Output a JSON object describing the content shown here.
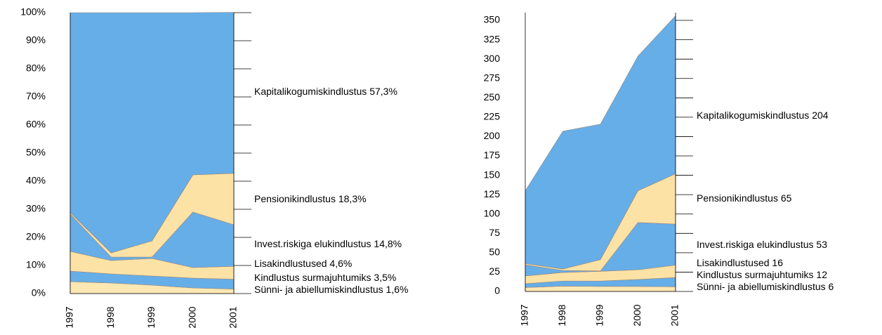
{
  "chart_data": [
    {
      "type": "area",
      "stacked": true,
      "categories": [
        "1997",
        "1998",
        "1999",
        "2000",
        "2001"
      ],
      "ylim": [
        0,
        100
      ],
      "yticks": [
        {
          "value": 0,
          "label": "0%"
        },
        {
          "value": 10,
          "label": "10%"
        },
        {
          "value": 20,
          "label": "20%"
        },
        {
          "value": 30,
          "label": "30%"
        },
        {
          "value": 40,
          "label": "40%"
        },
        {
          "value": 50,
          "label": "50%"
        },
        {
          "value": 60,
          "label": "60%"
        },
        {
          "value": 70,
          "label": "70%"
        },
        {
          "value": 80,
          "label": "80%"
        },
        {
          "value": 90,
          "label": "90%"
        },
        {
          "value": 100,
          "label": "100%"
        }
      ],
      "series": [
        {
          "name": "Sünni- ja abiellumiskindlustus",
          "color": "#fde7b3",
          "values": [
            4.25,
            3.75,
            3,
            2,
            1.6
          ],
          "value_labels": [
            null,
            null,
            null,
            null,
            "1,6%"
          ]
        },
        {
          "name": "Kindlustus surmajuhtumiks",
          "color": "#66aee8",
          "values": [
            3.75,
            3.25,
            3.25,
            3.5,
            3.5
          ],
          "value_labels": [
            null,
            null,
            null,
            null,
            "3,5%"
          ]
        },
        {
          "name": "Lisakindlustused",
          "color": "#fde2a6",
          "values": [
            7,
            4.75,
            6.25,
            3.75,
            4.6
          ],
          "value_labels": [
            null,
            null,
            null,
            null,
            "4,6%"
          ]
        },
        {
          "name": "Invest.riskiga elukindlustus",
          "color": "#66aee8",
          "values": [
            13.25,
            1.25,
            0.5,
            19.75,
            14.8
          ],
          "value_labels": [
            null,
            null,
            null,
            null,
            "14,8%"
          ]
        },
        {
          "name": "Pensionikindlustus",
          "color": "#fde2a6",
          "values": [
            0.5,
            1.5,
            5.75,
            13.25,
            18.3
          ],
          "value_labels": [
            null,
            null,
            null,
            null,
            "18,3%"
          ]
        },
        {
          "name": "Kapitalikogumiskindlustus",
          "color": "#66aee8",
          "values": [
            71.25,
            85.5,
            81.25,
            57.75,
            57.3
          ],
          "value_labels": [
            null,
            null,
            null,
            null,
            "57,3%"
          ]
        }
      ]
    },
    {
      "type": "area",
      "stacked": true,
      "categories": [
        "1997",
        "1998",
        "1999",
        "2000",
        "2001"
      ],
      "ylim": [
        0,
        360
      ],
      "yticks": [
        0,
        25,
        50,
        75,
        100,
        125,
        150,
        175,
        200,
        225,
        250,
        275,
        300,
        325,
        350
      ],
      "series": [
        {
          "name": "Sünni- ja abiellumiskindlustus",
          "color": "#fde7b3",
          "values": [
            5,
            7,
            6.5,
            6.5,
            6
          ]
        },
        {
          "name": "Kindlustus surmajuhtumiks",
          "color": "#66aee8",
          "values": [
            5,
            6.5,
            7,
            9,
            12
          ]
        },
        {
          "name": "Lisakindlustused",
          "color": "#fde2a6",
          "values": [
            10,
            11,
            12.5,
            12.5,
            16
          ]
        },
        {
          "name": "Invest.riskiga elukindlustus",
          "color": "#66aee8",
          "values": [
            14.5,
            2.5,
            0.5,
            61,
            53
          ]
        },
        {
          "name": "Pensionikindlustus",
          "color": "#fde2a6",
          "values": [
            1.5,
            2,
            14.5,
            41,
            65
          ]
        },
        {
          "name": "Kapitalikogumiskindlustus",
          "color": "#66aee8",
          "values": [
            94,
            178,
            175,
            174,
            204
          ]
        }
      ]
    }
  ]
}
